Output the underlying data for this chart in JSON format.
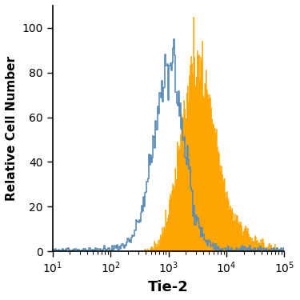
{
  "title": "",
  "xlabel": "Tie-2",
  "ylabel": "Relative Cell Number",
  "ylim": [
    0,
    110
  ],
  "yticks": [
    0,
    20,
    40,
    60,
    80,
    100
  ],
  "background_color": "#ffffff",
  "filled_color": "#FFA500",
  "filled_alpha": 1.0,
  "open_color": "#5b8db8",
  "open_linewidth": 1.2,
  "xlabel_fontsize": 13,
  "ylabel_fontsize": 11,
  "tick_fontsize": 10,
  "filled_peak_val": 105,
  "open_peak_val": 95,
  "filled_log_mean": 3.48,
  "filled_log_std": 0.28,
  "open_log_mean": 2.98,
  "open_log_std": 0.3,
  "open_log_mean2": 3.05,
  "open_log_std2": 0.2,
  "n_filled": 9000,
  "n_open": 6000,
  "n_open2": 3000,
  "seed": 12
}
